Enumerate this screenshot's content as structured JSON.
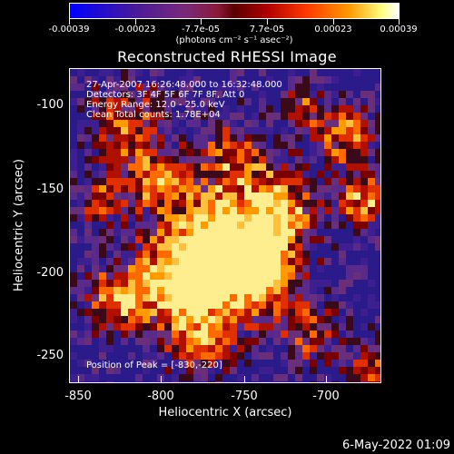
{
  "colorbar": {
    "tick_labels": [
      "-0.00039",
      "-0.00023",
      "-7.7e-05",
      "7.7e-05",
      "0.00023",
      "0.00039"
    ],
    "unit": "(photons cm⁻² s⁻¹ asec⁻²)",
    "colors": [
      "#0000ff",
      "#4a1a9a",
      "#7a2a7a",
      "#5a0000",
      "#b00000",
      "#ff3a00",
      "#ff9a00",
      "#ffff80",
      "#ffffff"
    ]
  },
  "plot": {
    "title": "Reconstructed RHESSI Image",
    "info_lines": [
      "27-Apr-2007 16:26:48.000 to 16:32:48.000",
      "Detectors: 3F 4F 5F 6F 7F 8F, Att 0",
      "Energy Range: 12.0 - 25.0 keV",
      "Clean     Total counts: 1.78E+04"
    ],
    "peak_label": "Position of Peak = [-830,-220]",
    "xlabel": "Heliocentric X (arcsec)",
    "ylabel": "Heliocentric Y (arcsec)",
    "x_ticks": [
      "-850",
      "-800",
      "-750",
      "-700"
    ],
    "y_ticks": [
      "-100",
      "-150",
      "-200",
      "-250"
    ],
    "x_range": [
      -855,
      -665
    ],
    "y_range": [
      -85,
      -272
    ]
  },
  "footer": {
    "date": "6-May-2022 01:09"
  }
}
